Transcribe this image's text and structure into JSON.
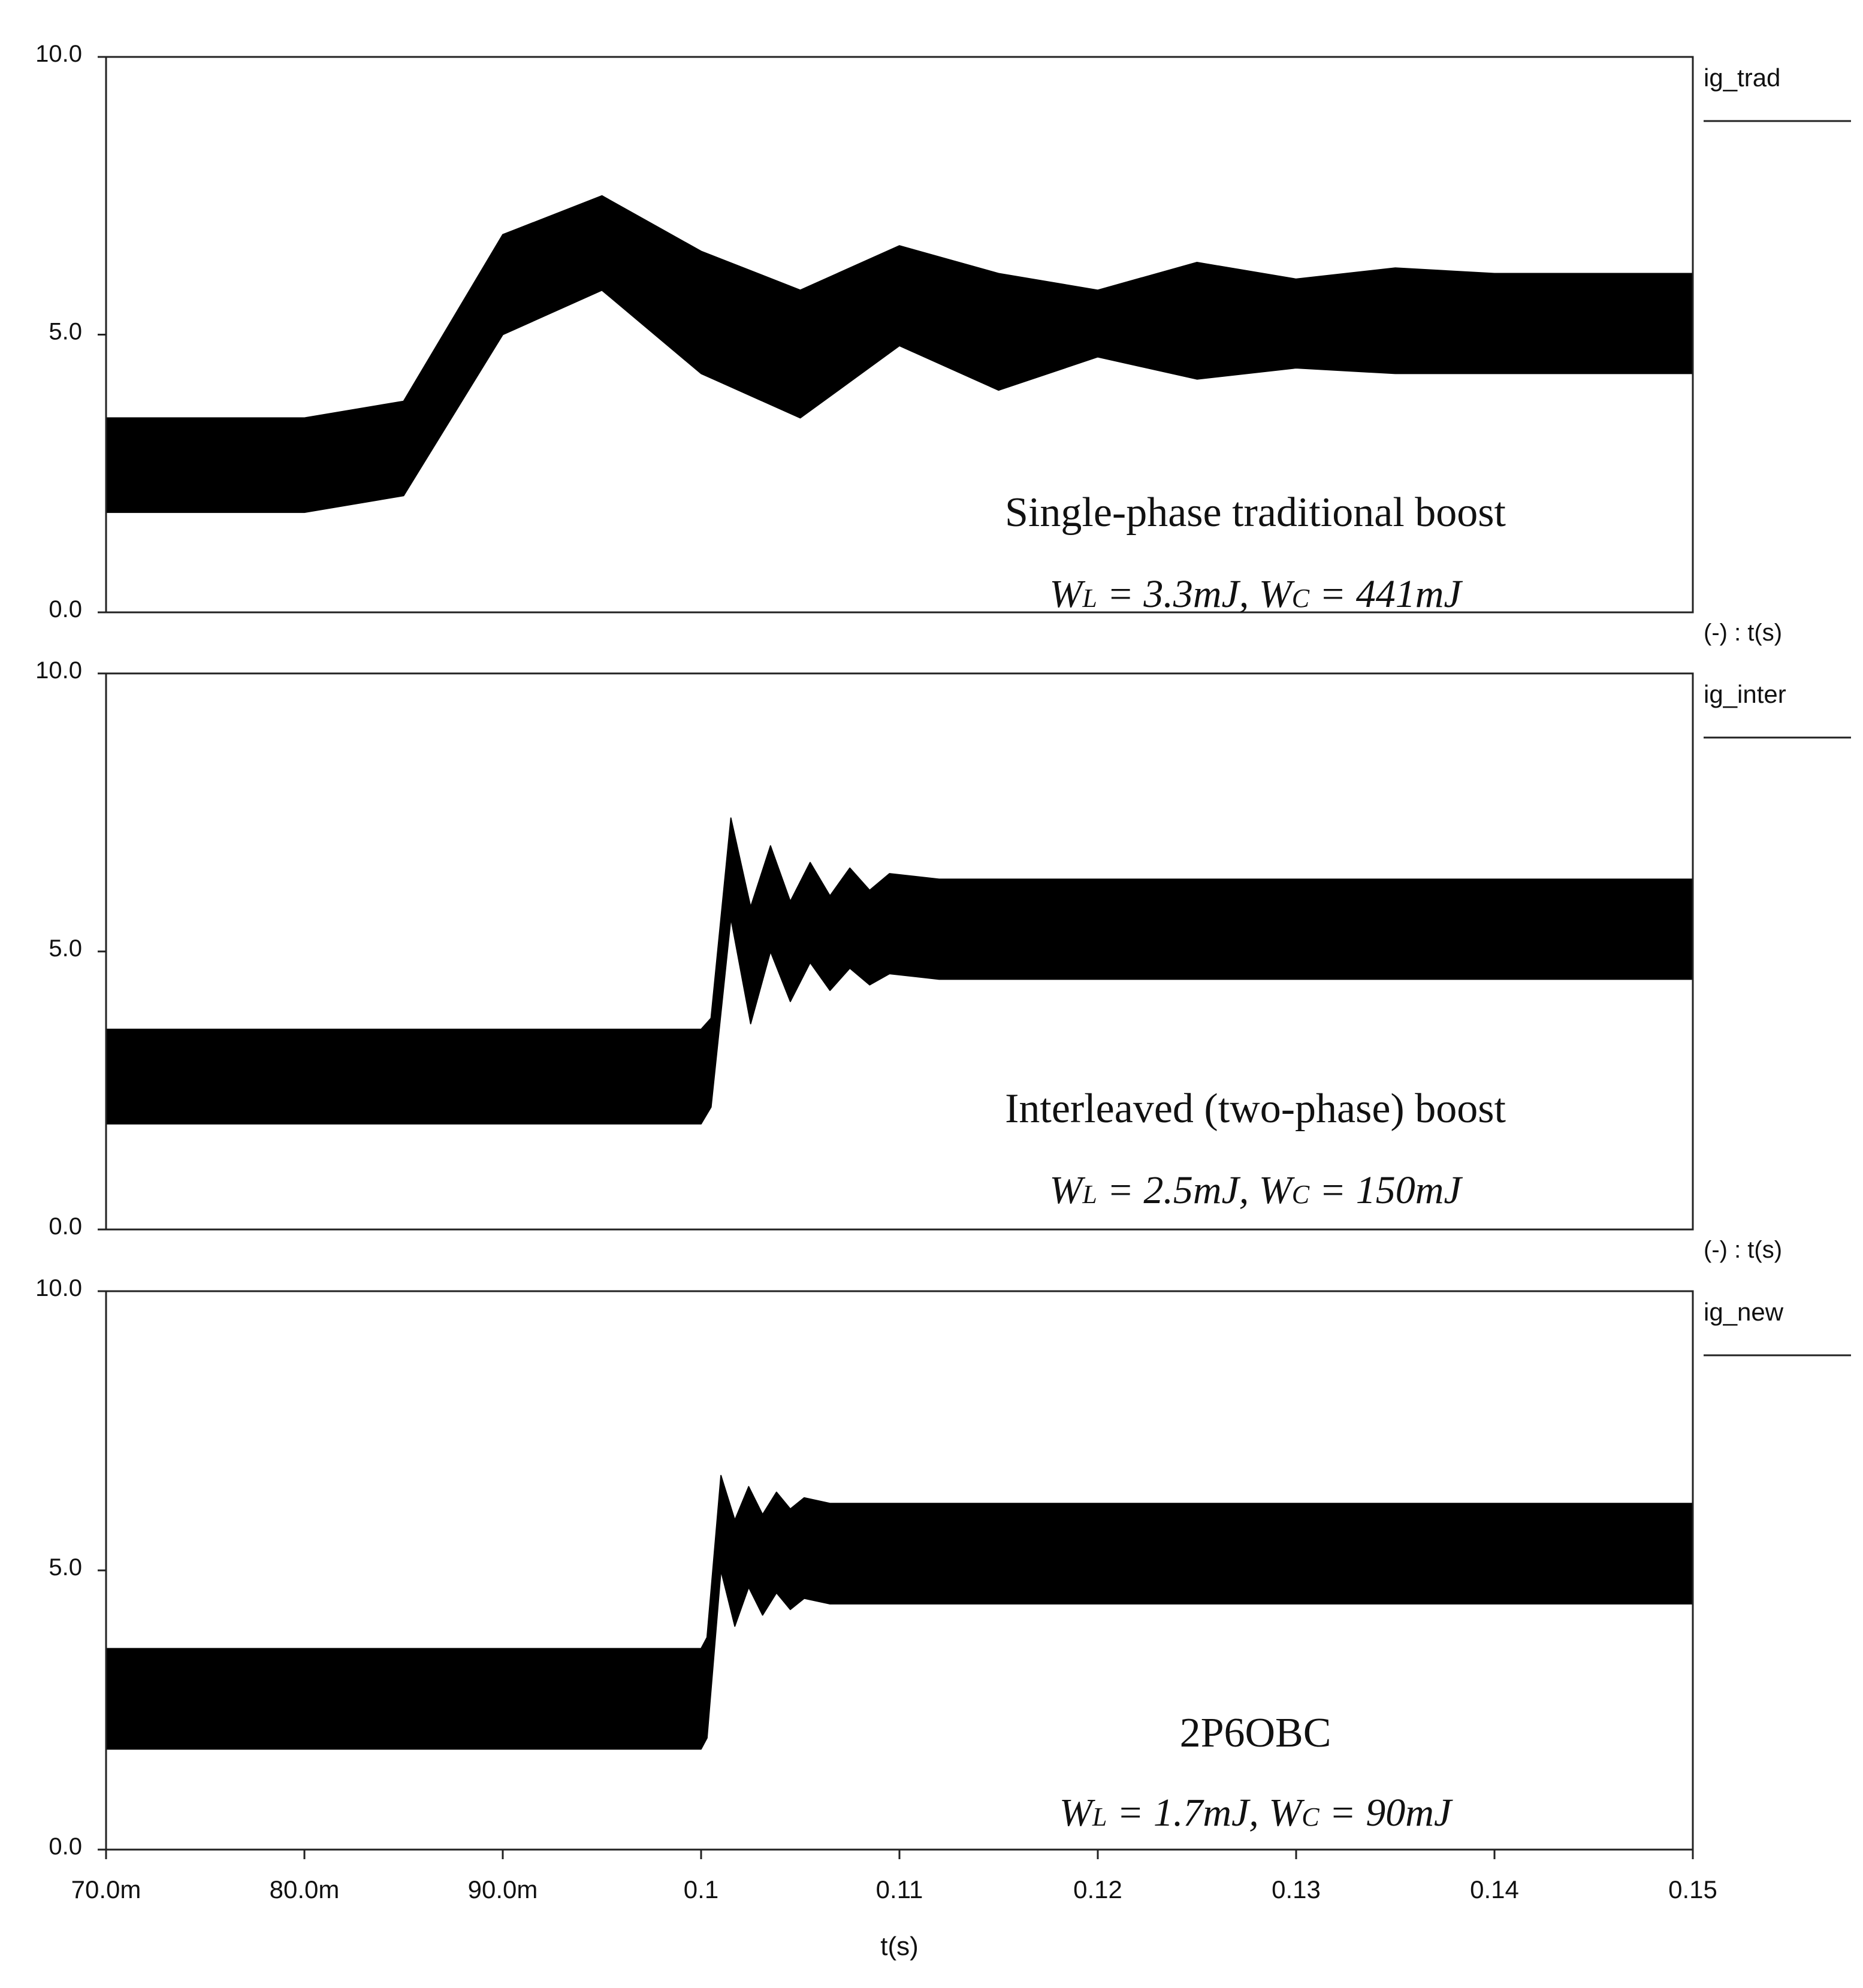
{
  "chart_data": [
    {
      "type": "area",
      "series": [
        {
          "name": "ig_trad"
        }
      ],
      "axis_prefix": "(-) : t(s)",
      "ylim": [
        0,
        10
      ],
      "y_ticks": [
        "0.0",
        "5.0",
        "10.0"
      ],
      "grid": false,
      "x_step": 0.1,
      "envelope_upper": [
        3.5,
        3.5,
        3.5,
        3.8,
        6.8,
        7.5,
        6.5,
        5.8,
        6.6,
        6.1,
        5.8,
        6.3,
        6.0,
        6.2,
        6.1,
        6.1,
        6.1
      ],
      "envelope_lower": [
        1.8,
        1.8,
        1.8,
        2.1,
        5.0,
        5.8,
        4.3,
        3.5,
        4.8,
        4.0,
        4.6,
        4.2,
        4.4,
        4.3,
        4.3,
        4.3,
        4.3
      ],
      "annotation": {
        "title": "Single-phase traditional boost",
        "wl_label": "W",
        "wl_sub": "L",
        "wl_value": " = 3.3mJ, ",
        "wc_label": "W",
        "wc_sub": "C",
        "wc_value": " = 441mJ"
      }
    },
    {
      "type": "area",
      "series": [
        {
          "name": "ig_inter"
        }
      ],
      "axis_prefix": "(-) : t(s)",
      "ylim": [
        0,
        10
      ],
      "y_ticks": [
        "0.0",
        "5.0",
        "10.0"
      ],
      "grid": false,
      "upper_points": [
        [
          0.07,
          3.6
        ],
        [
          0.1,
          3.6
        ],
        [
          0.1005,
          3.8
        ],
        [
          0.1015,
          7.4
        ],
        [
          0.1025,
          5.8
        ],
        [
          0.1035,
          6.9
        ],
        [
          0.1045,
          5.9
        ],
        [
          0.1055,
          6.6
        ],
        [
          0.1065,
          6.0
        ],
        [
          0.1075,
          6.5
        ],
        [
          0.1085,
          6.1
        ],
        [
          0.1095,
          6.4
        ],
        [
          0.112,
          6.3
        ],
        [
          0.15,
          6.3
        ]
      ],
      "lower_points": [
        [
          0.07,
          1.9
        ],
        [
          0.1,
          1.9
        ],
        [
          0.1005,
          2.2
        ],
        [
          0.1015,
          5.6
        ],
        [
          0.1025,
          3.7
        ],
        [
          0.1035,
          5.0
        ],
        [
          0.1045,
          4.1
        ],
        [
          0.1055,
          4.8
        ],
        [
          0.1065,
          4.3
        ],
        [
          0.1075,
          4.7
        ],
        [
          0.1085,
          4.4
        ],
        [
          0.1095,
          4.6
        ],
        [
          0.112,
          4.5
        ],
        [
          0.15,
          4.5
        ]
      ],
      "annotation": {
        "title": "Interleaved (two-phase) boost",
        "wl_label": "W",
        "wl_sub": "L",
        "wl_value": " = 2.5mJ, ",
        "wc_label": "W",
        "wc_sub": "C",
        "wc_value": " = 150mJ"
      }
    },
    {
      "type": "area",
      "series": [
        {
          "name": "ig_new"
        }
      ],
      "xlabel": "t(s)",
      "ylim": [
        0,
        10
      ],
      "xlim": [
        0.07,
        0.15
      ],
      "y_ticks": [
        "0.0",
        "5.0",
        "10.0"
      ],
      "x_ticks": [
        "70.0m",
        "80.0m",
        "90.0m",
        "0.1",
        "0.11",
        "0.12",
        "0.13",
        "0.14",
        "0.15"
      ],
      "grid": false,
      "upper_points": [
        [
          0.07,
          3.6
        ],
        [
          0.1,
          3.6
        ],
        [
          0.1003,
          3.8
        ],
        [
          0.101,
          6.7
        ],
        [
          0.1017,
          5.9
        ],
        [
          0.1024,
          6.5
        ],
        [
          0.1031,
          6.0
        ],
        [
          0.1038,
          6.4
        ],
        [
          0.1045,
          6.1
        ],
        [
          0.1052,
          6.3
        ],
        [
          0.1065,
          6.2
        ],
        [
          0.15,
          6.2
        ]
      ],
      "lower_points": [
        [
          0.07,
          1.8
        ],
        [
          0.1,
          1.8
        ],
        [
          0.1003,
          2.0
        ],
        [
          0.101,
          5.0
        ],
        [
          0.1017,
          4.0
        ],
        [
          0.1024,
          4.7
        ],
        [
          0.1031,
          4.2
        ],
        [
          0.1038,
          4.6
        ],
        [
          0.1045,
          4.3
        ],
        [
          0.1052,
          4.5
        ],
        [
          0.1065,
          4.4
        ],
        [
          0.15,
          4.4
        ]
      ],
      "annotation": {
        "title": "2P6OBC",
        "wl_label": "W",
        "wl_sub": "L",
        "wl_value": " = 1.7mJ, ",
        "wc_label": "W",
        "wc_sub": "C",
        "wc_value": " = 90mJ"
      }
    }
  ]
}
